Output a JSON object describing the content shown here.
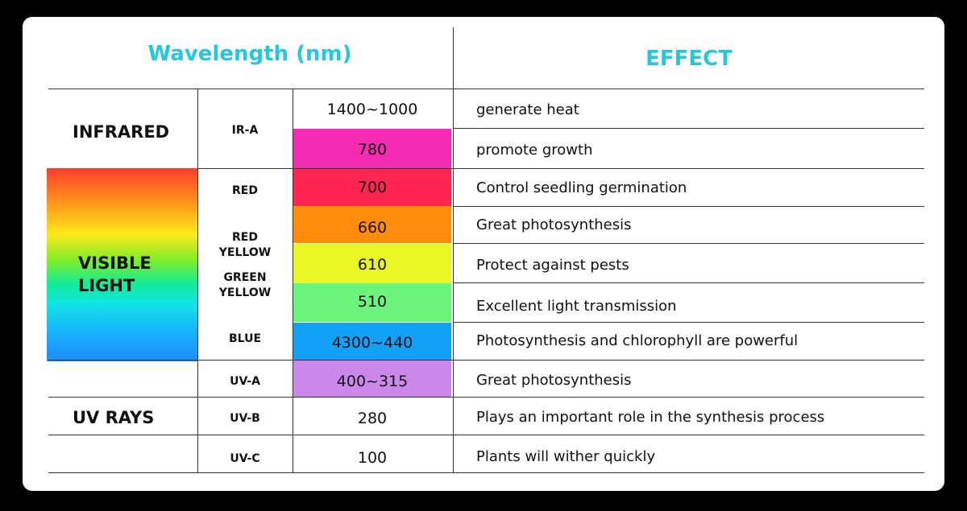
{
  "header": {
    "wavelength": "Wavelength (nm)",
    "effect": "EFFECT"
  },
  "categories": {
    "infrared": "INFRARED",
    "visible": "VISIBLE LIGHT",
    "uv": "UV RAYS"
  },
  "subs": {
    "ira": "IR-A",
    "red": "RED",
    "red_yellow_1": "RED",
    "red_yellow_2": "YELLOW",
    "green_yellow_1": "GREEN",
    "green_yellow_2": "YELLOW",
    "blue": "BLUE",
    "uva": "UV-A",
    "uvb": "UV-B",
    "uvc": "UV-C"
  },
  "rows": [
    {
      "wavelength": "1400~1000",
      "effect": "generate heat",
      "color": "#ffffff"
    },
    {
      "wavelength": "780",
      "effect": "promote growth",
      "color": "#f52cb3"
    },
    {
      "wavelength": "700",
      "effect": "Control seedling germination",
      "color": "#ff2550"
    },
    {
      "wavelength": "660",
      "effect": "Great photosynthesis",
      "color": "#ff8c0a"
    },
    {
      "wavelength": "610",
      "effect": "Protect against pests",
      "color": "#e9f622"
    },
    {
      "wavelength": "510",
      "effect": "Excellent light transmission",
      "color": "#6cf57a"
    },
    {
      "wavelength": "4300~440",
      "effect": "Photosynthesis and chlorophyll are powerful",
      "color": "#13a0f7"
    },
    {
      "wavelength": "400~315",
      "effect": "Great photosynthesis",
      "color": "#cb87ea"
    },
    {
      "wavelength": "280",
      "effect": "Plays an important role in the synthesis process",
      "color": "#ffffff"
    },
    {
      "wavelength": "100",
      "effect": "Plants will wither quickly",
      "color": "#ffffff"
    }
  ]
}
